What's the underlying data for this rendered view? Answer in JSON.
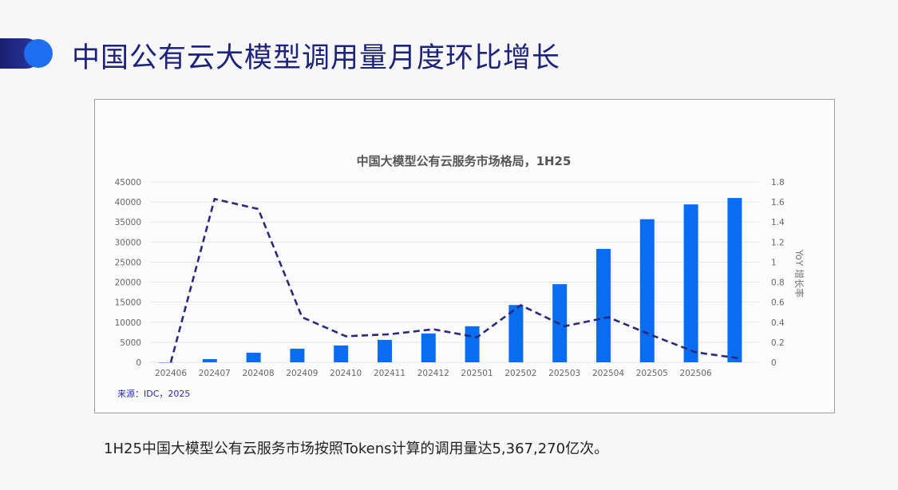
{
  "slide": {
    "title": "中国公有云大模型调用量月度环比增长",
    "caption": "1H25中国大模型公有云服务市场按照Tokens计算的调用量达5,367,270亿次。"
  },
  "colors": {
    "bar": "#0a6cf0",
    "line": "#2a2a7a",
    "title": "#1d237a"
  },
  "chart_data": {
    "type": "bar+line",
    "title": "中国大模型公有云服务市场格局，1H25",
    "source": "来源：IDC，2025",
    "categories": [
      "202406",
      "202407",
      "202408",
      "202409",
      "202410",
      "202411",
      "202412",
      "202501",
      "202502",
      "202503",
      "202504",
      "202505",
      "202506",
      ""
    ],
    "series": [
      {
        "type": "bar",
        "axis": "left",
        "values": [
          0,
          800,
          2400,
          3400,
          4200,
          5600,
          7200,
          9000,
          14300,
          19500,
          28300,
          35700,
          39400,
          41000
        ]
      },
      {
        "type": "line",
        "style": "dashed",
        "axis": "right",
        "values": [
          0,
          1.63,
          1.53,
          0.45,
          0.26,
          0.28,
          0.33,
          0.25,
          0.57,
          0.36,
          0.45,
          0.27,
          0.1,
          0.04
        ]
      }
    ],
    "ylim": [
      0,
      45000
    ],
    "yticks": [
      "0",
      "5000",
      "10000",
      "15000",
      "20000",
      "25000",
      "30000",
      "35000",
      "40000",
      "45000"
    ],
    "y2lim": [
      0,
      1.8
    ],
    "y2ticks": [
      "0",
      "0.2",
      "0.4",
      "0.6",
      "0.8",
      "1",
      "1.2",
      "1.4",
      "1.6",
      "1.8"
    ],
    "y2label": "YoY 增长率",
    "grid": true
  }
}
